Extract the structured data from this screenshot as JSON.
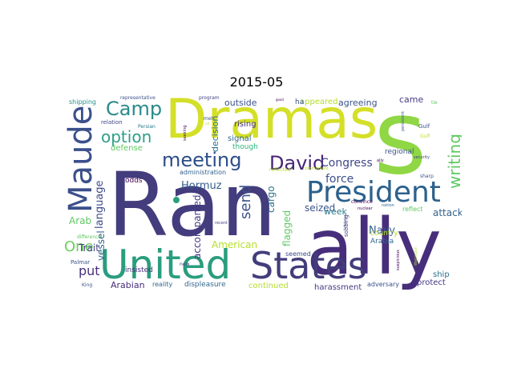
{
  "title": "2015-05",
  "words": [
    {
      "text": "Ran",
      "color": "#433c7d"
    },
    {
      "text": "Dramas",
      "color": "#d4df27"
    },
    {
      "text": "ally",
      "color": "#472e7b"
    },
    {
      "text": "United",
      "color": "#2a9d7e"
    },
    {
      "text": "States",
      "color": "#423d7a"
    },
    {
      "text": "s",
      "color": "#8fd744"
    },
    {
      "text": "President",
      "color": "#2c618c"
    },
    {
      "text": "Maude",
      "color": "#3b4f8a"
    },
    {
      "text": "meeting",
      "color": "#2c4e8a"
    },
    {
      "text": "Camp",
      "color": "#2b8a8a"
    },
    {
      "text": "David",
      "color": "#482475"
    },
    {
      "text": "option",
      "color": "#2e9f88"
    },
    {
      "text": "writing",
      "color": "#5ec962"
    },
    {
      "text": "send",
      "color": "#3b528b"
    },
    {
      "text": "One",
      "color": "#6ccd5a"
    },
    {
      "text": "put",
      "color": "#46327e"
    },
    {
      "text": "Congress",
      "color": "#3f4889"
    },
    {
      "text": "force",
      "color": "#3b518b"
    },
    {
      "text": "language",
      "color": "#3e4a89"
    },
    {
      "text": "Hormuz",
      "color": "#355f8d"
    },
    {
      "text": "seized",
      "color": "#3a548c"
    },
    {
      "text": "Navy",
      "color": "#35608d"
    },
    {
      "text": "attack",
      "color": "#33638d"
    },
    {
      "text": "week",
      "color": "#2a788e"
    },
    {
      "text": "accompanied",
      "color": "#443983"
    },
    {
      "text": "cargo",
      "color": "#2d708e"
    },
    {
      "text": "vessel",
      "color": "#34608d"
    },
    {
      "text": "Trait",
      "color": "#414487"
    },
    {
      "text": "Arab",
      "color": "#5ec962"
    },
    {
      "text": "flagged",
      "color": "#5ec962"
    },
    {
      "text": "American",
      "color": "#b5de2b"
    },
    {
      "text": "outside",
      "color": "#3b518b"
    },
    {
      "text": "agreeing",
      "color": "#3b528b"
    },
    {
      "text": "appeared",
      "color": "#b5de2b"
    },
    {
      "text": "ha",
      "color": "#3a548c"
    },
    {
      "text": "came",
      "color": "#443b84"
    },
    {
      "text": "decision",
      "color": "#2d708e"
    },
    {
      "text": "rising",
      "color": "#46307e"
    },
    {
      "text": "signal",
      "color": "#31688e"
    },
    {
      "text": "though",
      "color": "#2fb47c"
    },
    {
      "text": "defense",
      "color": "#5ec962"
    },
    {
      "text": "administration",
      "color": "#33638d"
    },
    {
      "text": "Arabian",
      "color": "#472d7b"
    },
    {
      "text": "reality",
      "color": "#31688e"
    },
    {
      "text": "displeasure",
      "color": "#31688e"
    },
    {
      "text": "continued",
      "color": "#b5de2b"
    },
    {
      "text": "harassment",
      "color": "#443983"
    },
    {
      "text": "adversary",
      "color": "#3b528b"
    },
    {
      "text": "protect",
      "color": "#443983"
    },
    {
      "text": "ship",
      "color": "#2c718e"
    },
    {
      "text": "reflect",
      "color": "#5ec962"
    },
    {
      "text": "regional",
      "color": "#3b528b"
    },
    {
      "text": "country",
      "color": "#b5de2b"
    },
    {
      "text": "Arabia",
      "color": "#31688e"
    },
    {
      "text": "seemed",
      "color": "#3e4c8a"
    },
    {
      "text": "sobbing",
      "color": "#433e85"
    },
    {
      "text": "insisted",
      "color": "#472c7a"
    },
    {
      "text": "odds",
      "color": "#440154"
    },
    {
      "text": "shipping",
      "color": "#21918c"
    },
    {
      "text": "relation",
      "color": "#414487"
    },
    {
      "text": "representative",
      "color": "#3b528b"
    },
    {
      "text": "program",
      "color": "#414487"
    },
    {
      "text": "Persian",
      "color": "#2a788e"
    },
    {
      "text": "met",
      "color": "#3b528b"
    },
    {
      "text": "Gulf",
      "color": "#3b528b"
    },
    {
      "text": "Palmar",
      "color": "#3b528b"
    },
    {
      "text": "King",
      "color": "#3b528b"
    },
    {
      "text": "difference",
      "color": "#5ec962"
    },
    {
      "text": "new",
      "color": "#414487"
    },
    {
      "text": "recent",
      "color": "#414487"
    },
    {
      "text": "convince",
      "color": "#440154"
    },
    {
      "text": "nuclear",
      "color": "#440154"
    },
    {
      "text": "nation",
      "color": "#31688e"
    },
    {
      "text": "security",
      "color": "#414487"
    },
    {
      "text": "sharp",
      "color": "#3b528b"
    },
    {
      "text": "commitment",
      "color": "#b5de2b"
    },
    {
      "text": "reflected",
      "color": "#b5de2b"
    },
    {
      "text": "persistent",
      "color": "#3b528b"
    },
    {
      "text": "intended",
      "color": "#3b528b"
    },
    {
      "text": "Washington",
      "color": "#b5de2b"
    },
    {
      "text": "suspicious",
      "color": "#440154"
    },
    {
      "text": "seeking",
      "color": "#440154"
    },
    {
      "text": "Gulf",
      "color": "#b5de2b"
    },
    {
      "text": "tie",
      "color": "#5ec962"
    },
    {
      "text": "ally",
      "color": "#440154"
    },
    {
      "text": "good",
      "color": "#440154"
    },
    {
      "text": "ult",
      "color": "#b5de2b"
    }
  ]
}
